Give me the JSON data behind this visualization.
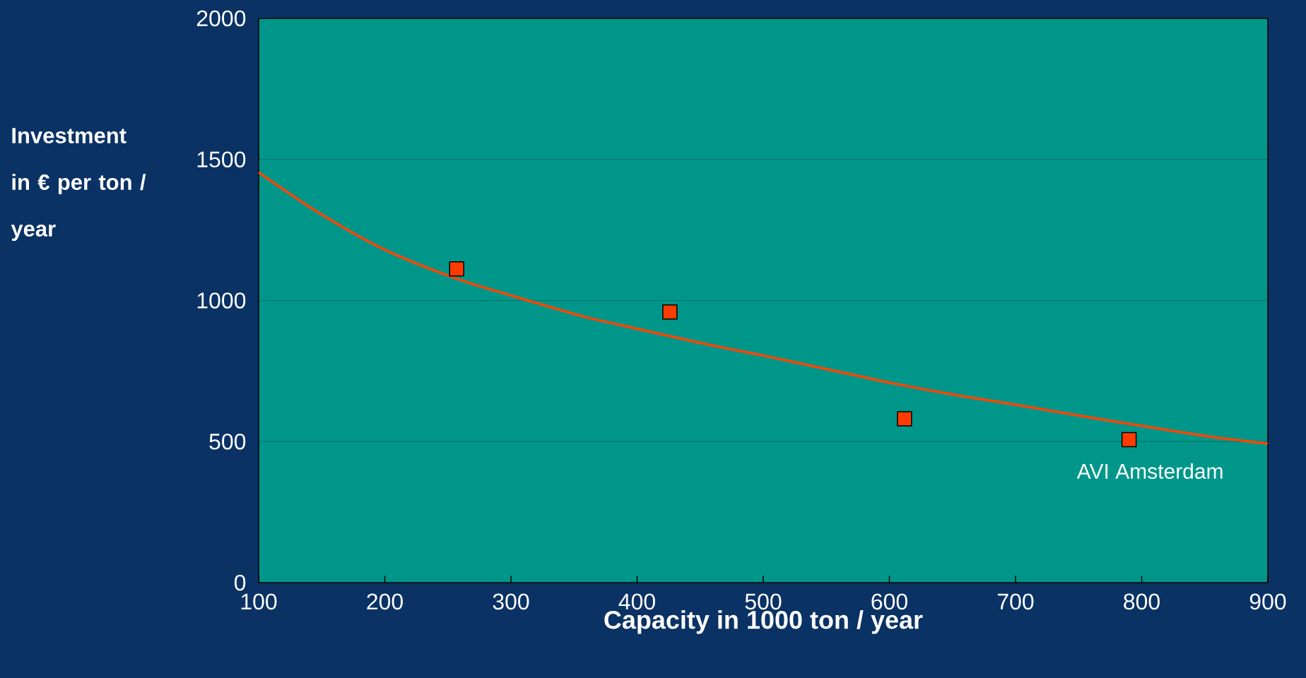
{
  "chart_data": {
    "type": "scatter",
    "xlabel": "Capacity in 1000 ton / year",
    "ylabel": "Investment in € per ton / year",
    "xlim": [
      100,
      900
    ],
    "xticks": [
      100,
      200,
      300,
      400,
      500,
      600,
      700,
      800,
      900
    ],
    "ylim": [
      0,
      2000
    ],
    "yticks": [
      0,
      500,
      1000,
      1500,
      2000
    ],
    "grid": "y",
    "series": [
      {
        "type": "line",
        "color": "#ff4500",
        "marker": "none",
        "line_style": "solid",
        "x": [
          100,
          149,
          200,
          257,
          300,
          357,
          400,
          456,
          500,
          555,
          601,
          654,
          700,
          753,
          801,
          852,
          900
        ],
        "values": [
          1454,
          1307,
          1180,
          1077,
          1018,
          944,
          900,
          844,
          805,
          752,
          708,
          664,
          631,
          590,
          555,
          519,
          493
        ]
      },
      {
        "color": "#ff3c00",
        "marker": "square",
        "x": [
          257,
          426,
          612,
          790
        ],
        "values": [
          1112,
          959,
          581,
          507
        ]
      }
    ],
    "annotations": [
      {
        "text": "AVI Amsterdam",
        "x": 790,
        "y": 507
      }
    ]
  }
}
